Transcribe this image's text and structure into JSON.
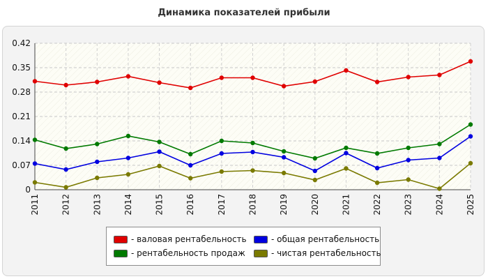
{
  "title": "Динамика показателей прибыли",
  "chart_data": {
    "type": "line",
    "categories": [
      "2011",
      "2012",
      "2013",
      "2014",
      "2015",
      "2016",
      "2017",
      "2018",
      "2019",
      "2020",
      "2021",
      "2022",
      "2023",
      "2024",
      "2025"
    ],
    "y_ticks": [
      "0.42",
      "0.35",
      "0.28",
      "0.21",
      "0.14",
      "0.07",
      "0"
    ],
    "ylim": [
      0,
      0.42
    ],
    "grid": true,
    "legend_position": "bottom",
    "series": [
      {
        "name": "валовая рентабельность",
        "color": "#e00000",
        "values": [
          0.311,
          0.3,
          0.309,
          0.325,
          0.307,
          0.292,
          0.321,
          0.321,
          0.297,
          0.31,
          0.342,
          0.309,
          0.323,
          0.329,
          0.368
        ]
      },
      {
        "name": "общая рентабельность",
        "color": "#0000e0",
        "values": [
          0.075,
          0.058,
          0.08,
          0.091,
          0.109,
          0.07,
          0.104,
          0.108,
          0.093,
          0.054,
          0.105,
          0.062,
          0.085,
          0.091,
          0.153
        ]
      },
      {
        "name": "рентабельность продаж",
        "color": "#007a00",
        "values": [
          0.143,
          0.118,
          0.131,
          0.154,
          0.137,
          0.102,
          0.14,
          0.134,
          0.11,
          0.09,
          0.12,
          0.104,
          0.12,
          0.131,
          0.187
        ]
      },
      {
        "name": "чистая рентабельность",
        "color": "#7a7a00",
        "values": [
          0.021,
          0.007,
          0.034,
          0.044,
          0.068,
          0.033,
          0.052,
          0.055,
          0.048,
          0.028,
          0.061,
          0.02,
          0.029,
          0.003,
          0.076
        ]
      }
    ]
  },
  "legend": {
    "items": [
      {
        "label": "- валовая рентабельность",
        "color": "#e00000"
      },
      {
        "label": "- общая рентабельность",
        "color": "#0000e0"
      },
      {
        "label": "- рентабельность продаж",
        "color": "#007a00"
      },
      {
        "label": "- чистая рентабельность",
        "color": "#7a7a00"
      }
    ]
  }
}
